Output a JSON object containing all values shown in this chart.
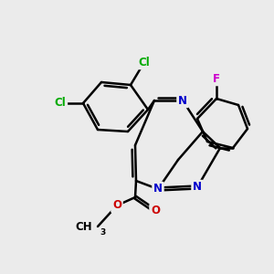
{
  "bg_color": "#ebebeb",
  "bond_color": "#000000",
  "bond_lw": 1.8,
  "atom_colors": {
    "N": "#0000cc",
    "O": "#cc0000",
    "Cl": "#00aa00",
    "F": "#cc00cc",
    "C": "#000000"
  },
  "font_size": 8.5,
  "figsize": [
    3.0,
    3.0
  ],
  "dpi": 100
}
